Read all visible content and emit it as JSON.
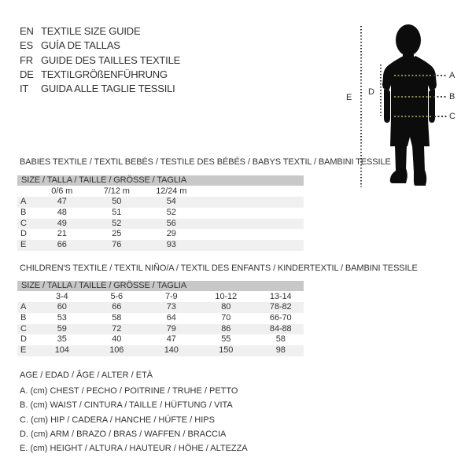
{
  "colors": {
    "header_bar": "#c8c8c9",
    "row_stripe": "#f0f0f0",
    "text": "#333333",
    "silhouette": "#0c0c0c",
    "dots_on_body": "#8b8b4f",
    "dots_dark": "#3c3c3c"
  },
  "languages": [
    {
      "code": "EN",
      "label": "TEXTILE SIZE GUIDE"
    },
    {
      "code": "ES",
      "label": "GUÍA DE TALLAS"
    },
    {
      "code": "FR",
      "label": "GUIDE DES TAILLES TEXTILE"
    },
    {
      "code": "DE",
      "label": "TEXTILGRÖßENFÜHRUNG"
    },
    {
      "code": "IT",
      "label": "GUIDA ALLE TAGLIE TESSILI"
    }
  ],
  "figure": {
    "labels": {
      "a": "A",
      "b": "B",
      "c": "C",
      "d": "D",
      "e": "E"
    }
  },
  "babies": {
    "heading": "BABIES TEXTILE / TEXTIL BEBÉS / TESTILE DES BÉBÉS / BABYS TEXTIL / BAMBINI TESSILE",
    "size_header": "SIZE / TALLA / TAILLE / GRÖSSE / TAGLIA",
    "columns": [
      "0/6 m",
      "7/12 m",
      "12/24 m"
    ],
    "rows": [
      {
        "label": "A",
        "values": [
          "47",
          "50",
          "54"
        ]
      },
      {
        "label": "B",
        "values": [
          "48",
          "51",
          "52"
        ]
      },
      {
        "label": "C",
        "values": [
          "49",
          "52",
          "56"
        ]
      },
      {
        "label": "D",
        "values": [
          "21",
          "25",
          "29"
        ]
      },
      {
        "label": "E",
        "values": [
          "66",
          "76",
          "93"
        ]
      }
    ]
  },
  "children": {
    "heading": "CHILDREN'S TEXTILE / TEXTIL NIÑO/A / TEXTIL DES ENFANTS / KINDERTEXTIL / BAMBINI TESSILE",
    "size_header": "SIZE / TALLA / TAILLE / GRÖSSE / TAGLIA",
    "columns": [
      "3-4",
      "5-6",
      "7-9",
      "10-12",
      "13-14"
    ],
    "rows": [
      {
        "label": "A",
        "values": [
          "60",
          "66",
          "73",
          "80",
          "78-82"
        ]
      },
      {
        "label": "B",
        "values": [
          "53",
          "58",
          "64",
          "70",
          "66-70"
        ]
      },
      {
        "label": "C",
        "values": [
          "59",
          "72",
          "79",
          "86",
          "84-88"
        ]
      },
      {
        "label": "D",
        "values": [
          "35",
          "40",
          "47",
          "55",
          "58"
        ]
      },
      {
        "label": "E",
        "values": [
          "104",
          "106",
          "140",
          "150",
          "98"
        ]
      }
    ]
  },
  "age_line": "AGE / EDAD / ÂGE / ALTER / ETÀ",
  "legend": [
    "A. (cm) CHEST / PECHO / POITRINE / TRUHE / PETTO",
    "B. (cm) WAIST / CINTURA / TAILLE / HÜFTUNG / VITA",
    "C. (cm) HIP / CADERA / HANCHE / HÜFTE / HIPS",
    "D. (cm) ARM / BRAZO / BRAS / WAFFEN / BRACCIA",
    "E. (cm) HEIGHT / ALTURA / HAUTEUR / HÖHE / ALTEZZA"
  ]
}
